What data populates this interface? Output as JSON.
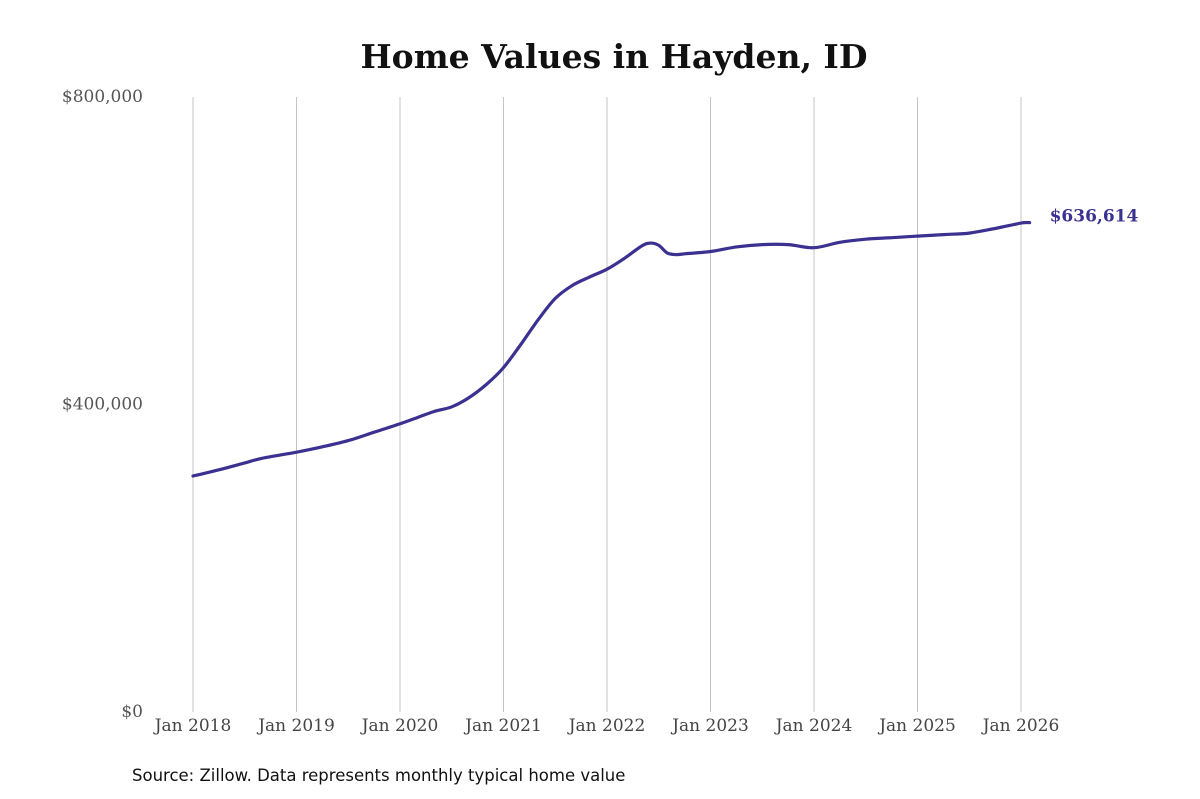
{
  "chart_data": {
    "type": "line",
    "title": "Home Values in Hayden, ID",
    "source": "Source: Zillow. Data represents monthly typical home value",
    "ylim": [
      0,
      800000
    ],
    "y_ticks": [
      {
        "value": 0,
        "label": "$0"
      },
      {
        "value": 400000,
        "label": "$400,000"
      },
      {
        "value": 800000,
        "label": "$800,000"
      }
    ],
    "x_ticks": [
      {
        "value": "2018-01",
        "label": "Jan 2018"
      },
      {
        "value": "2019-01",
        "label": "Jan 2019"
      },
      {
        "value": "2020-01",
        "label": "Jan 2020"
      },
      {
        "value": "2021-01",
        "label": "Jan 2021"
      },
      {
        "value": "2022-01",
        "label": "Jan 2022"
      },
      {
        "value": "2023-01",
        "label": "Jan 2023"
      },
      {
        "value": "2024-01",
        "label": "Jan 2024"
      },
      {
        "value": "2025-01",
        "label": "Jan 2025"
      },
      {
        "value": "2026-01",
        "label": "Jan 2026"
      }
    ],
    "xlim": [
      "2018-01",
      "2026-02"
    ],
    "grid": "vertical",
    "line_color": "#3a3190",
    "end_label": "$636,614",
    "series": [
      {
        "x": [
          "2018-01",
          "2018-04",
          "2018-07",
          "2018-09",
          "2019-01",
          "2019-04",
          "2019-07",
          "2019-10",
          "2020-01",
          "2020-03",
          "2020-05",
          "2020-07",
          "2020-09",
          "2020-11",
          "2021-01",
          "2021-03",
          "2021-05",
          "2021-07",
          "2021-09",
          "2021-11",
          "2022-01",
          "2022-03",
          "2022-05",
          "2022-06",
          "2022-07",
          "2022-08",
          "2022-09",
          "2022-10",
          "2022-11",
          "2023-01",
          "2023-04",
          "2023-07",
          "2023-10",
          "2024-01",
          "2024-04",
          "2024-07",
          "2024-10",
          "2025-01",
          "2025-04",
          "2025-07",
          "2025-10",
          "2026-01",
          "2026-02"
        ],
        "y": [
          307000,
          315000,
          324000,
          330000,
          338000,
          345000,
          353000,
          364000,
          375000,
          383000,
          391000,
          397000,
          409000,
          426000,
          448000,
          478000,
          510000,
          538000,
          555000,
          566000,
          576000,
          590000,
          606000,
          610000,
          607000,
          597000,
          595000,
          596000,
          597000,
          599000,
          605000,
          608000,
          608000,
          604000,
          611000,
          615000,
          617000,
          619000,
          621000,
          623000,
          629000,
          636000,
          636614
        ]
      }
    ]
  }
}
